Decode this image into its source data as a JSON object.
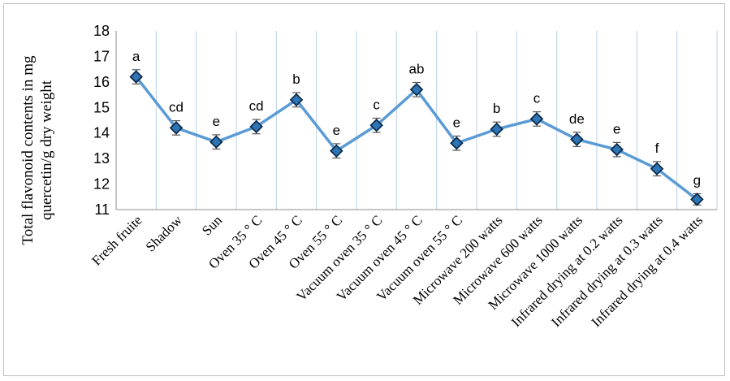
{
  "chart_data": {
    "type": "line",
    "ylabel_line1": "Total flavonoid  contents in mg",
    "ylabel_line2": "quercetin/g  dry weight",
    "ylim": [
      11,
      18
    ],
    "yticks": [
      "11",
      "12",
      "13",
      "14",
      "15",
      "16",
      "17",
      "18"
    ],
    "grid": "vertical",
    "categories": [
      "Fresh fruite",
      "Shadow",
      "Sun",
      "Oven 35 ° C",
      "Oven 45 ° C",
      "Oven 55 ° C",
      "Vacuum oven 35 ° C",
      "Vacuum oven 45 ° C",
      "Vacuum oven 55 ° C",
      "Microwave 200 watts",
      "Microwave 600 watts",
      "Microwave 1000 watts",
      "Infrared drying at 0.2 watts",
      "Infrared drying at 0.3 watts",
      "Infrared drying at 0.4 watts"
    ],
    "series": [
      {
        "values": [
          16.2,
          14.2,
          13.65,
          14.25,
          15.3,
          13.3,
          14.3,
          15.7,
          13.6,
          14.15,
          14.55,
          13.75,
          13.35,
          12.6,
          11.4
        ],
        "errors": [
          0.28,
          0.28,
          0.28,
          0.28,
          0.28,
          0.28,
          0.28,
          0.28,
          0.28,
          0.28,
          0.28,
          0.28,
          0.28,
          0.28,
          0.22
        ],
        "letters": [
          "a",
          "cd",
          "e",
          "cd",
          "b",
          "e",
          "c",
          "ab",
          "e",
          "b",
          "c",
          "de",
          "e",
          "f",
          "g"
        ]
      }
    ]
  },
  "colors": {
    "line": "#5b9bd5",
    "marker_fill": "#2e75b6",
    "marker_stroke": "#0d2b4a",
    "grid": "#b8d0e8",
    "axis": "#8c8c8c",
    "text": "#000000"
  }
}
